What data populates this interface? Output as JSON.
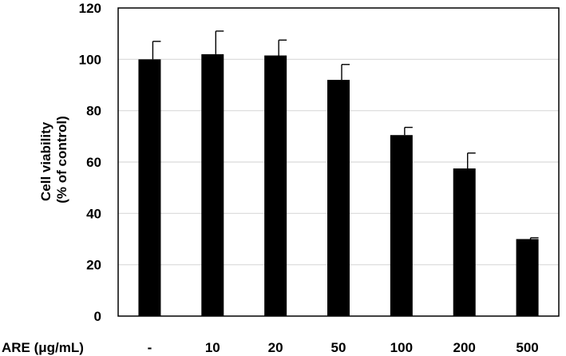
{
  "chart_data": {
    "type": "bar",
    "title": "",
    "ylabel_lines": [
      "Cell viability",
      "(% of control)"
    ],
    "xaxis_label": "ARE (μg/mL)",
    "categories": [
      "-",
      "10",
      "20",
      "50",
      "100",
      "200",
      "500"
    ],
    "values": [
      100,
      102,
      101.5,
      92,
      70.5,
      57.5,
      30
    ],
    "errors": [
      7,
      9,
      6,
      6,
      3,
      6,
      0.5
    ],
    "ylim": [
      0,
      120
    ],
    "yticks": [
      0,
      20,
      40,
      60,
      80,
      100,
      120
    ],
    "grid": true,
    "legend": "none",
    "colors": {
      "bar": "#000000",
      "grid": "#d9d9d9",
      "frame": "#000000",
      "error": "#000000"
    }
  }
}
